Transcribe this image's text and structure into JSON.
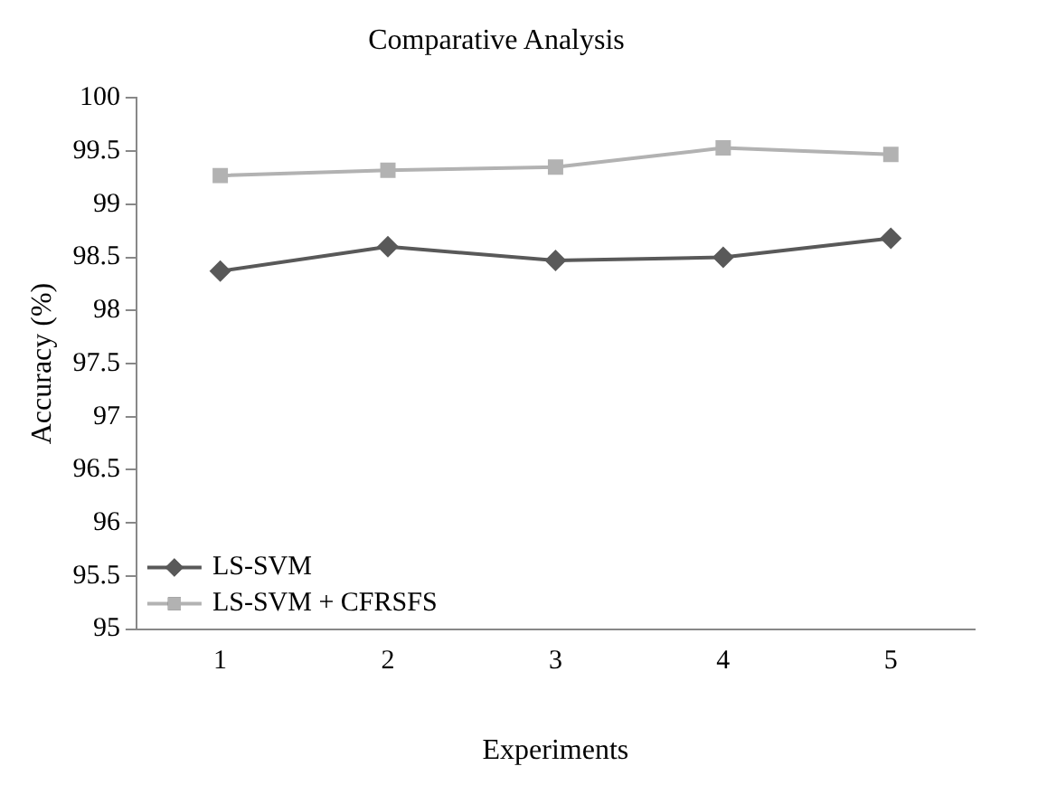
{
  "chart_data": {
    "type": "line",
    "title": "Comparative Analysis",
    "xlabel": "Experiments",
    "ylabel": "Accuracy (%)",
    "categories": [
      "1",
      "2",
      "3",
      "4",
      "5"
    ],
    "series": [
      {
        "name": "LS-SVM",
        "color": "#595959",
        "marker": "diamond",
        "values": [
          98.37,
          98.6,
          98.47,
          98.5,
          98.68
        ]
      },
      {
        "name": "LS-SVM + CFRSFS",
        "color": "#b2b2b2",
        "marker": "square",
        "values": [
          99.27,
          99.32,
          99.35,
          99.53,
          99.47
        ]
      }
    ],
    "ylim": [
      95,
      100
    ],
    "yticks": [
      95,
      95.5,
      96,
      96.5,
      97,
      97.5,
      98,
      98.5,
      99,
      99.5,
      100
    ],
    "grid": false,
    "legend": "bottom left"
  }
}
